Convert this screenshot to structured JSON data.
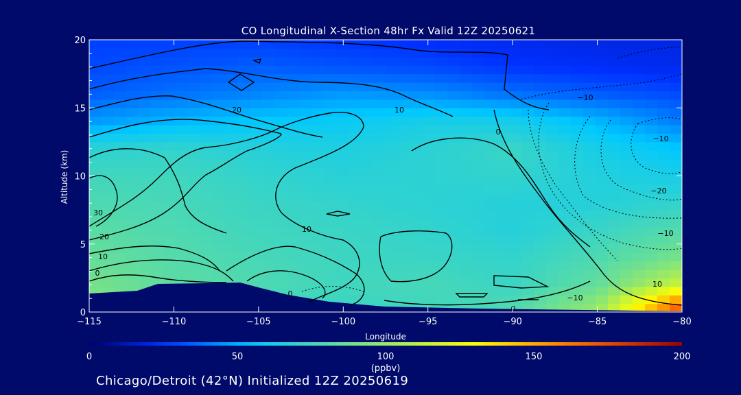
{
  "chart_data": {
    "type": "heatmap",
    "title": "CO Longitudinal X-Section 48hr  Fx Valid 12Z 20250621",
    "xlabel": "Longitude",
    "ylabel": "Altitude (km)",
    "xlim": [
      -115,
      -80
    ],
    "ylim": [
      0,
      20
    ],
    "x_ticks": [
      "-115",
      "-110",
      "-105",
      "-100",
      "-95",
      "-90",
      "-85",
      "-80"
    ],
    "y_ticks": [
      "0",
      "5",
      "10",
      "15",
      "20"
    ],
    "colorbar": {
      "label": "(ppbv)",
      "range": [
        0,
        200
      ],
      "ticks": [
        "0",
        "50",
        "100",
        "150",
        "200"
      ],
      "colors": [
        "#00006a",
        "#0030ff",
        "#00c8ff",
        "#ffff00",
        "#ff6a00",
        "#a00000"
      ]
    },
    "field_samples": {
      "x": [
        -115,
        -110,
        -105,
        -100,
        -95,
        -90,
        -85,
        -80
      ],
      "y": [
        0.5,
        2,
        4,
        6,
        8,
        10,
        12,
        14,
        16,
        18,
        20
      ],
      "values": [
        [
          95,
          80,
          75,
          72,
          74,
          78,
          98,
          170
        ],
        [
          90,
          82,
          78,
          74,
          76,
          72,
          84,
          115
        ],
        [
          85,
          80,
          76,
          73,
          72,
          70,
          78,
          90
        ],
        [
          82,
          78,
          74,
          72,
          70,
          66,
          72,
          80
        ],
        [
          78,
          76,
          72,
          70,
          68,
          66,
          66,
          70
        ],
        [
          74,
          74,
          70,
          67,
          68,
          70,
          65,
          62
        ],
        [
          68,
          70,
          66,
          64,
          68,
          72,
          62,
          55
        ],
        [
          46,
          52,
          56,
          58,
          62,
          62,
          52,
          40
        ],
        [
          34,
          38,
          42,
          46,
          44,
          38,
          34,
          30
        ],
        [
          30,
          32,
          34,
          32,
          30,
          26,
          24,
          22
        ],
        [
          28,
          28,
          28,
          26,
          24,
          22,
          20,
          20
        ]
      ]
    },
    "contour_labels": [
      "20",
      "10",
      "0",
      "-10",
      "-10",
      "-20",
      "-10",
      "30",
      "20",
      "10",
      "0",
      "0",
      "10",
      "-10",
      "0",
      "10"
    ],
    "footer": "Chicago/Detroit (42°N) Initialized 12Z 20250619"
  }
}
